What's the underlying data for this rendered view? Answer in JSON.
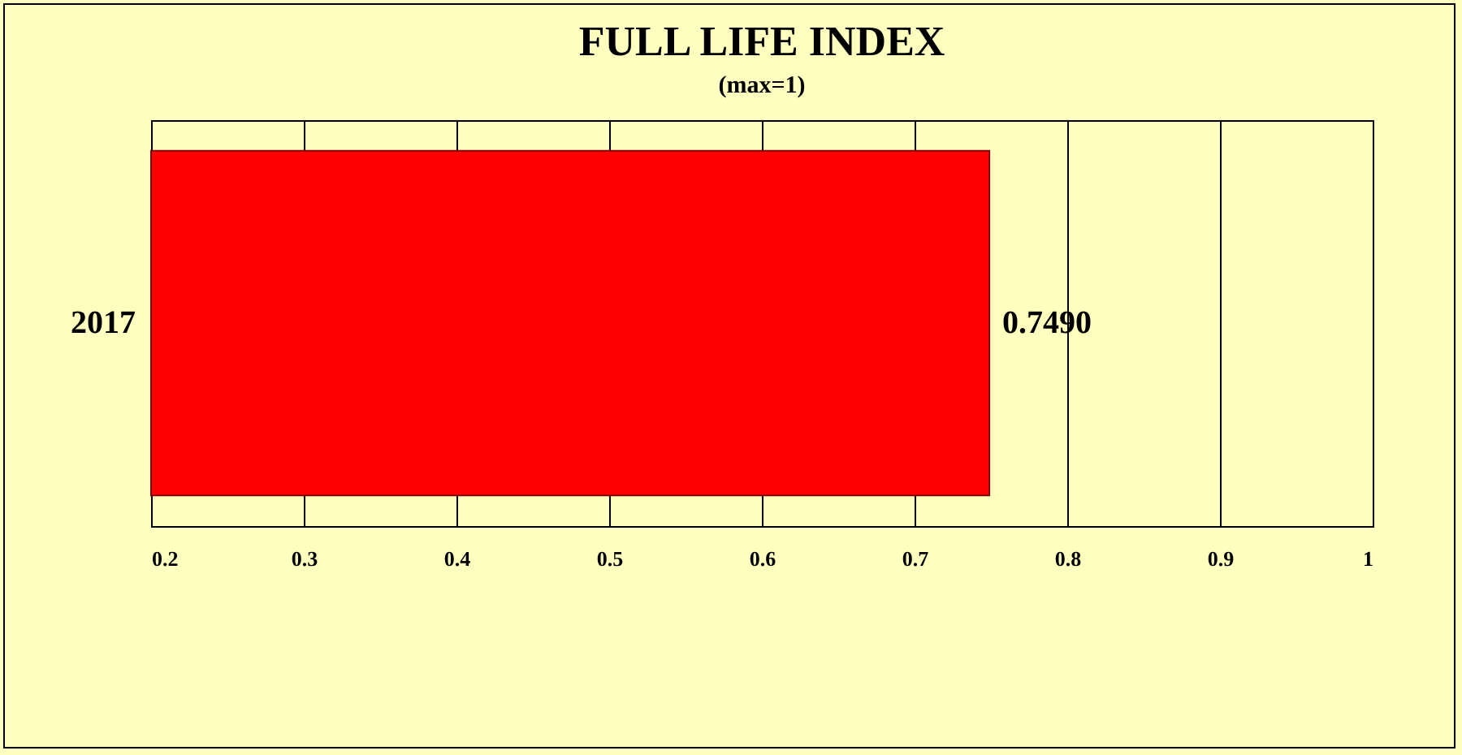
{
  "chart_data": {
    "type": "bar",
    "title": "FULL LIFE INDEX",
    "subtitle": "(max=1)",
    "orientation": "horizontal",
    "categories": [
      "2017"
    ],
    "series": [
      {
        "color": "#ff0000",
        "values": [
          0.749
        ]
      }
    ],
    "value_labels": [
      "0.7490"
    ],
    "xlim": [
      0.2,
      1
    ],
    "xticks": [
      0.2,
      0.3,
      0.4,
      0.5,
      0.6,
      0.7,
      0.8,
      0.9,
      1
    ],
    "grid": "x"
  }
}
